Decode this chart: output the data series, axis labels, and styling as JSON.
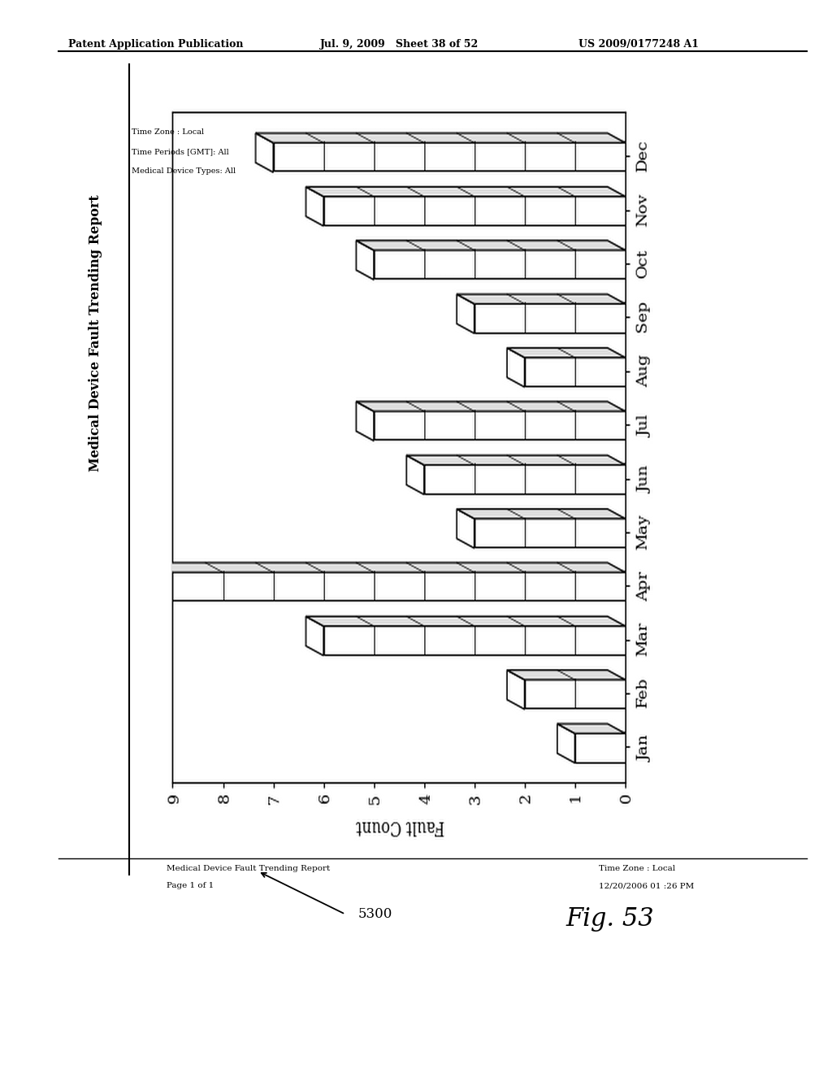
{
  "header_left": "Patent Application Publication",
  "header_middle": "Jul. 9, 2009   Sheet 38 of 52",
  "header_right": "US 2009/0177248 A1",
  "report_title": "Medical Device Fault Trending Report",
  "subtitle_lines": [
    "Time Zone : Local",
    "Time Periods [GMT]: All",
    "Medical Device Types: All"
  ],
  "months": [
    "Jan",
    "Feb",
    "Mar",
    "Apr",
    "May",
    "Jun",
    "Jul",
    "Aug",
    "Sep",
    "Oct",
    "Nov",
    "Dec"
  ],
  "values": [
    1,
    2,
    6,
    9,
    3,
    4,
    5,
    2,
    3,
    5,
    6,
    7
  ],
  "ylim_max": 9,
  "ylabel": "Fault Count",
  "fig_label": "Fig. 53",
  "footer_chart_title": "Medical Device Fault Trending Report",
  "footer_page": "Page 1 of 1",
  "footer_timezone": "Time Zone : Local",
  "footer_datetime": "12/20/2006 01 :26 PM",
  "arrow_label": "5300",
  "bg_color": "#ffffff"
}
